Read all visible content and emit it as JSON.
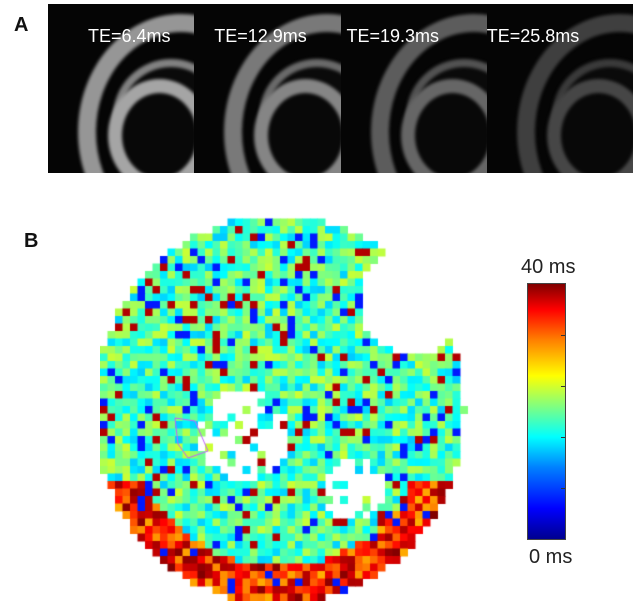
{
  "panel_a": {
    "label": "A",
    "frames": [
      {
        "te": "TE=6.4ms",
        "brightness": 1.0
      },
      {
        "te": "TE=12.9ms",
        "brightness": 0.8
      },
      {
        "te": "TE=19.3ms",
        "brightness": 0.6
      },
      {
        "te": "TE=25.8ms",
        "brightness": 0.4
      }
    ]
  },
  "panel_b": {
    "label": "B",
    "colorbar": {
      "max_label": "40 ms",
      "min_label": "0 ms",
      "range": [
        0,
        40
      ],
      "colormap": "jet"
    }
  }
}
